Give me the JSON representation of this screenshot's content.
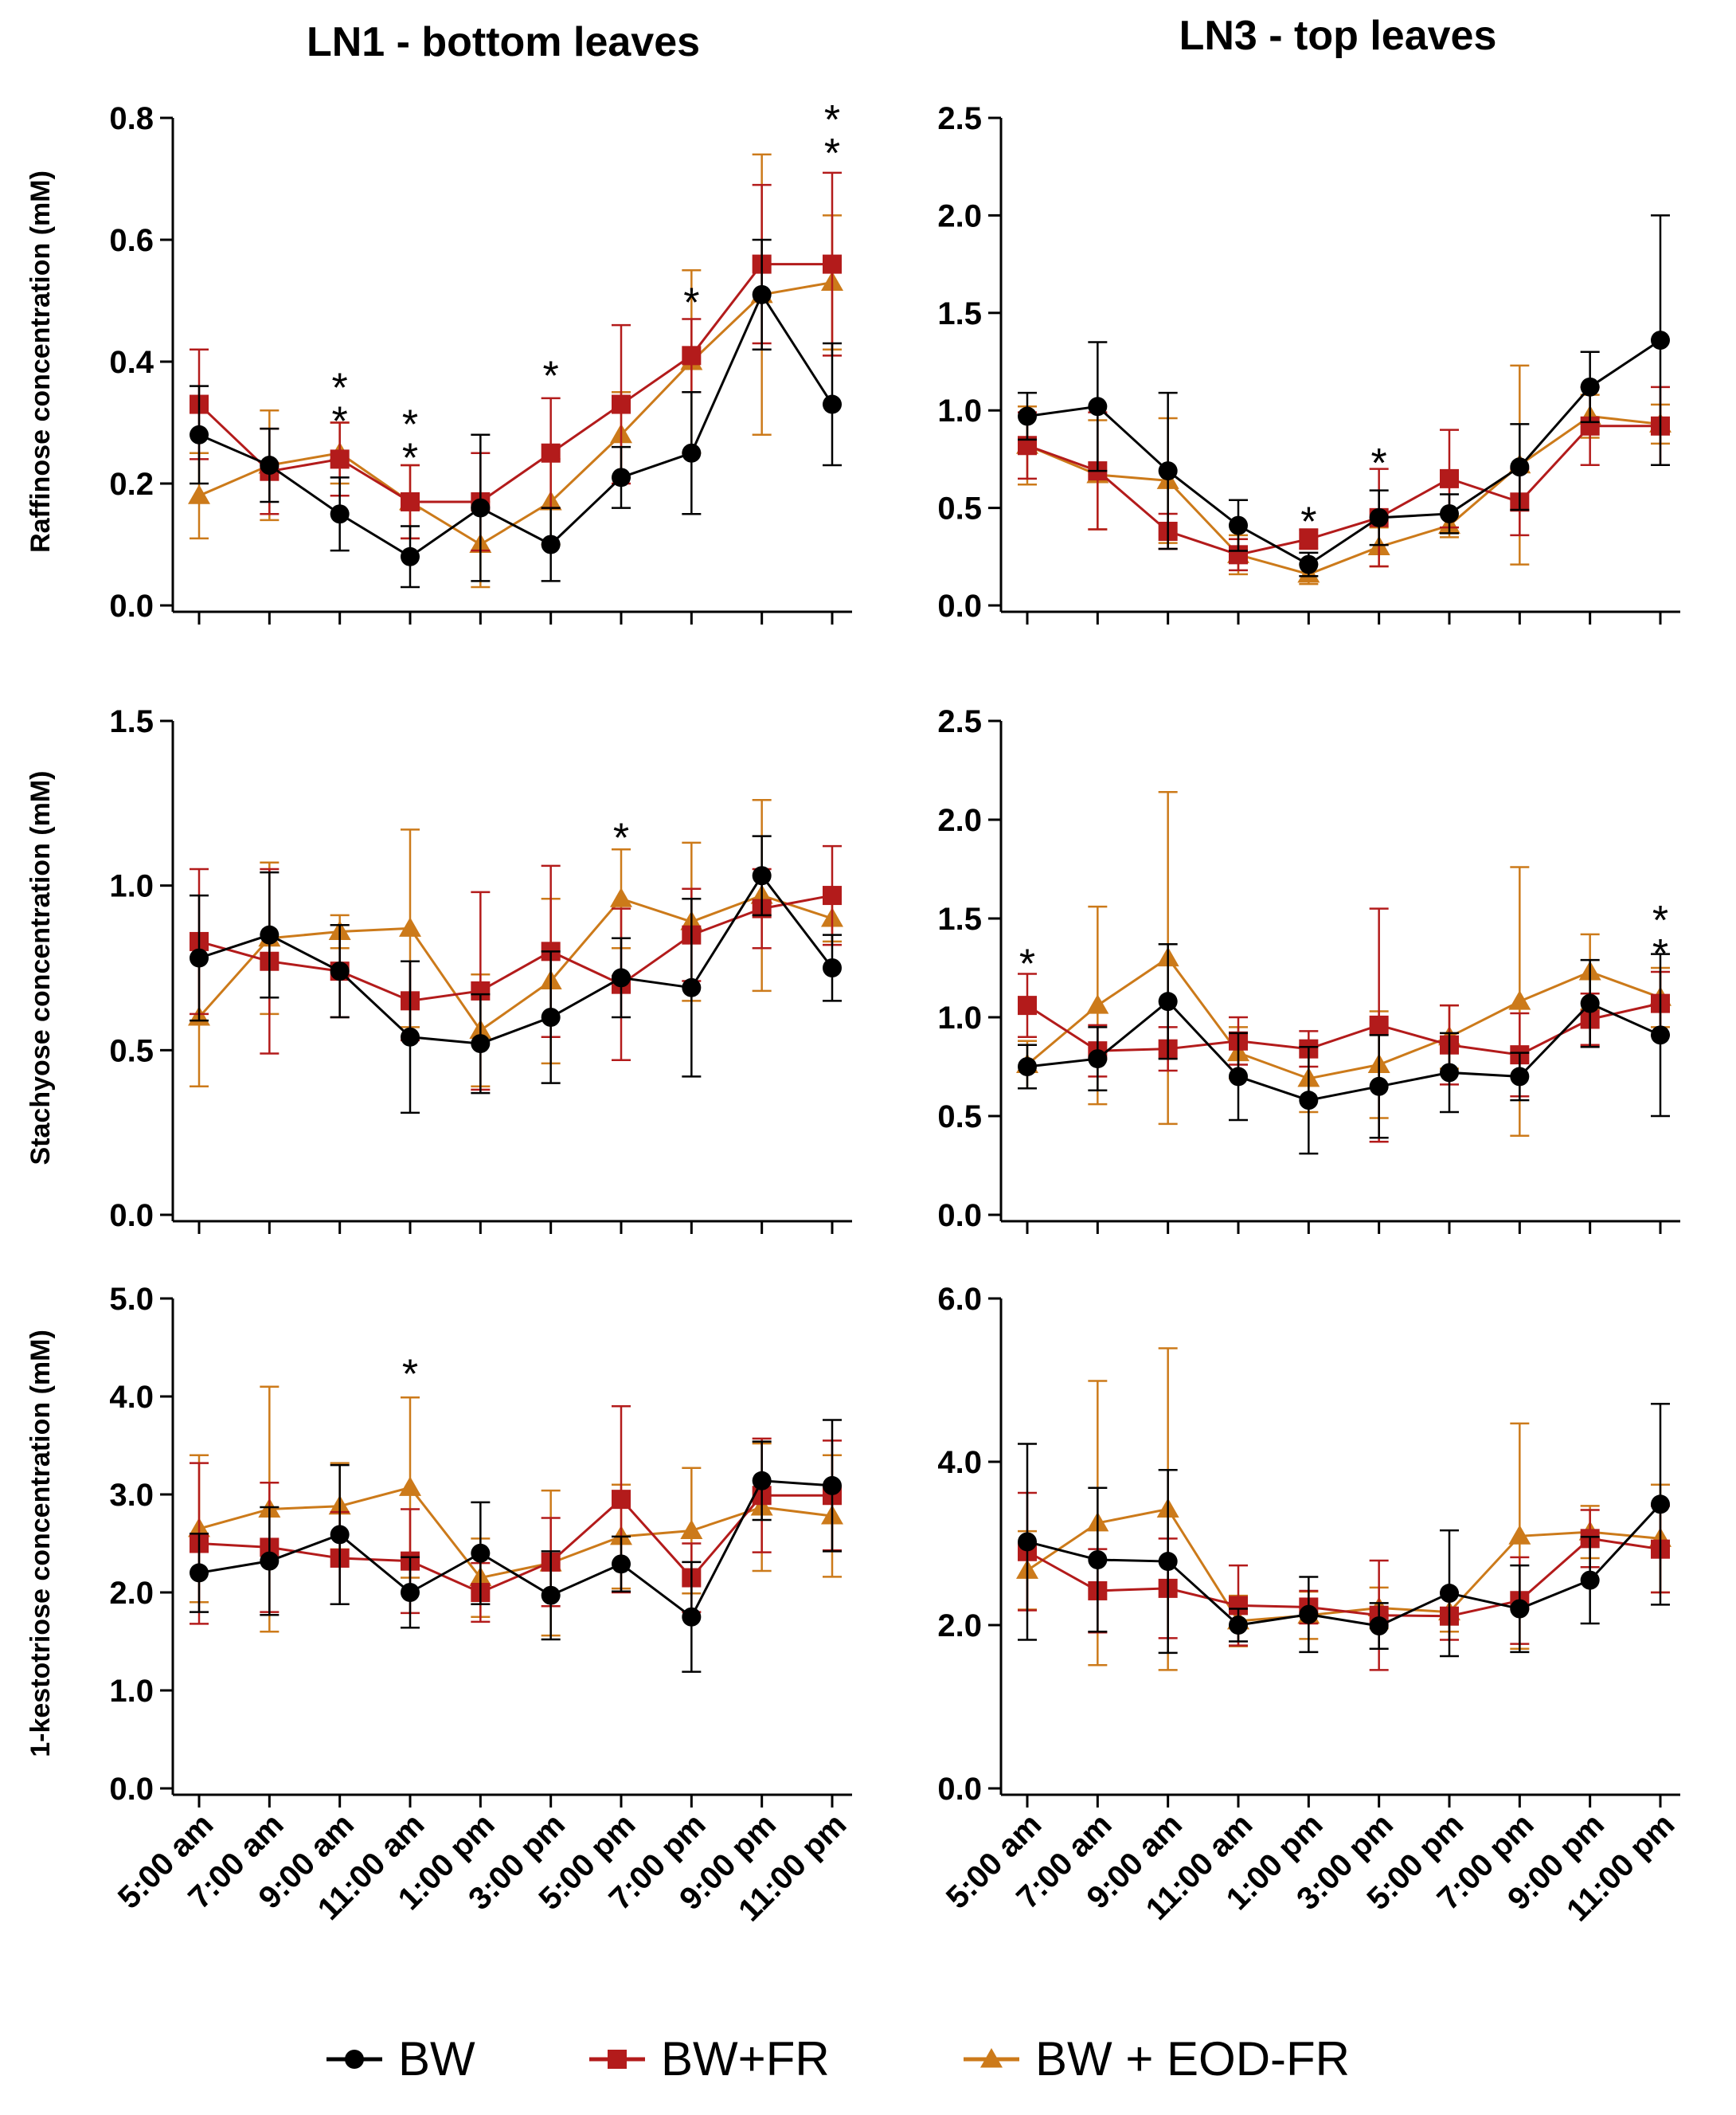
{
  "column_titles": [
    "LN1 - bottom leaves",
    "LN3 - top leaves"
  ],
  "legend": [
    {
      "label": "BW",
      "color": "#000000",
      "marker": "circle"
    },
    {
      "label": "BW+FR",
      "color": "#b31b1b",
      "marker": "square"
    },
    {
      "label": "BW + EOD-FR",
      "color": "#cc7a1a",
      "marker": "triangle"
    }
  ],
  "chart_data": [
    {
      "id": "raffinose-ln1",
      "type": "line",
      "title": "LN1 - bottom leaves",
      "ylabel": "Raffinose concentration (mM)",
      "categories": [
        "5:00 am",
        "7:00 am",
        "9:00 am",
        "11:00 am",
        "1:00 pm",
        "3:00 pm",
        "5:00 pm",
        "7:00 pm",
        "9:00 pm",
        "11:00 pm"
      ],
      "ylim": [
        0,
        0.8
      ],
      "yticks": [
        0.0,
        0.2,
        0.4,
        0.6,
        0.8
      ],
      "series": [
        {
          "name": "BW",
          "values": [
            0.28,
            0.23,
            0.15,
            0.08,
            0.16,
            0.1,
            0.21,
            0.25,
            0.51,
            0.33
          ],
          "err": [
            0.08,
            0.06,
            0.06,
            0.05,
            0.12,
            0.06,
            0.05,
            0.1,
            0.09,
            0.1
          ]
        },
        {
          "name": "BW+FR",
          "values": [
            0.33,
            0.22,
            0.24,
            0.17,
            0.17,
            0.25,
            0.33,
            0.41,
            0.56,
            0.56
          ],
          "err": [
            0.09,
            0.07,
            0.06,
            0.06,
            0.08,
            0.09,
            0.13,
            0.06,
            0.13,
            0.15
          ]
        },
        {
          "name": "BW + EOD-FR",
          "values": [
            0.18,
            0.23,
            0.25,
            0.17,
            0.1,
            0.17,
            0.28,
            0.4,
            0.51,
            0.53
          ],
          "err": [
            0.07,
            0.09,
            0.05,
            0.06,
            0.07,
            0.07,
            0.07,
            0.15,
            0.23,
            0.11
          ]
        }
      ],
      "significance": [
        {
          "category": "9:00 am",
          "y": 0.36,
          "marks": "* *"
        },
        {
          "category": "11:00 am",
          "y": 0.3,
          "marks": "* *"
        },
        {
          "category": "3:00 pm",
          "y": 0.38,
          "marks": "*"
        },
        {
          "category": "7:00 pm",
          "y": 0.5,
          "marks": "*"
        },
        {
          "category": "11:00 pm",
          "y": 0.8,
          "marks": "* *"
        }
      ]
    },
    {
      "id": "raffinose-ln3",
      "type": "line",
      "title": "LN3 - top leaves",
      "ylabel": "",
      "categories": [
        "5:00 am",
        "7:00 am",
        "9:00 am",
        "11:00 am",
        "1:00 pm",
        "3:00 pm",
        "5:00 pm",
        "7:00 pm",
        "9:00 pm",
        "11:00 pm"
      ],
      "ylim": [
        0,
        2.5
      ],
      "yticks": [
        0.0,
        0.5,
        1.0,
        1.5,
        2.0,
        2.5
      ],
      "series": [
        {
          "name": "BW",
          "values": [
            0.97,
            1.02,
            0.69,
            0.41,
            0.21,
            0.45,
            0.47,
            0.71,
            1.12,
            1.36
          ],
          "err": [
            0.12,
            0.33,
            0.4,
            0.13,
            0.06,
            0.14,
            0.1,
            0.22,
            0.18,
            0.64
          ]
        },
        {
          "name": "BW+FR",
          "values": [
            0.82,
            0.69,
            0.38,
            0.26,
            0.34,
            0.45,
            0.65,
            0.53,
            0.92,
            0.92
          ],
          "err": [
            0.17,
            0.3,
            0.09,
            0.08,
            0.05,
            0.25,
            0.25,
            0.17,
            0.2,
            0.2
          ]
        },
        {
          "name": "BW + EOD-FR",
          "values": [
            0.82,
            0.67,
            0.64,
            0.26,
            0.16,
            0.3,
            0.41,
            0.72,
            0.97,
            0.93
          ],
          "err": [
            0.2,
            0.28,
            0.32,
            0.1,
            0.05,
            0.1,
            0.06,
            0.51,
            0.11,
            0.1
          ]
        }
      ],
      "significance": [
        {
          "category": "1:00 pm",
          "y": 0.44,
          "marks": "*"
        },
        {
          "category": "3:00 pm",
          "y": 0.74,
          "marks": "*"
        }
      ]
    },
    {
      "id": "stachyose-ln1",
      "type": "line",
      "ylabel": "Stachyose concentration (mM)",
      "categories": [
        "5:00 am",
        "7:00 am",
        "9:00 am",
        "11:00 am",
        "1:00 pm",
        "3:00 pm",
        "5:00 pm",
        "7:00 pm",
        "9:00 pm",
        "11:00 pm"
      ],
      "ylim": [
        0,
        1.5
      ],
      "yticks": [
        0.0,
        0.5,
        1.0,
        1.5
      ],
      "series": [
        {
          "name": "BW",
          "values": [
            0.78,
            0.85,
            0.74,
            0.54,
            0.52,
            0.6,
            0.72,
            0.69,
            1.03,
            0.75
          ],
          "err": [
            0.19,
            0.19,
            0.14,
            0.23,
            0.15,
            0.2,
            0.12,
            0.27,
            0.12,
            0.1
          ]
        },
        {
          "name": "BW+FR",
          "values": [
            0.83,
            0.77,
            0.74,
            0.65,
            0.68,
            0.8,
            0.7,
            0.85,
            0.93,
            0.97
          ],
          "err": [
            0.22,
            0.28,
            0.14,
            0.12,
            0.3,
            0.26,
            0.23,
            0.14,
            0.12,
            0.15
          ]
        },
        {
          "name": "BW + EOD-FR",
          "values": [
            0.6,
            0.84,
            0.86,
            0.87,
            0.56,
            0.71,
            0.96,
            0.89,
            0.97,
            0.9
          ],
          "err": [
            0.21,
            0.23,
            0.05,
            0.3,
            0.17,
            0.25,
            0.15,
            0.24,
            0.29,
            0.07
          ]
        }
      ],
      "significance": [
        {
          "category": "5:00 pm",
          "y": 1.15,
          "marks": "*"
        }
      ]
    },
    {
      "id": "stachyose-ln3",
      "type": "line",
      "ylabel": "",
      "categories": [
        "5:00 am",
        "7:00 am",
        "9:00 am",
        "11:00 am",
        "1:00 pm",
        "3:00 pm",
        "5:00 pm",
        "7:00 pm",
        "9:00 pm",
        "11:00 pm"
      ],
      "ylim": [
        0,
        2.5
      ],
      "yticks": [
        0.0,
        0.5,
        1.0,
        1.5,
        2.0,
        2.5
      ],
      "series": [
        {
          "name": "BW",
          "values": [
            0.75,
            0.79,
            1.08,
            0.7,
            0.58,
            0.65,
            0.72,
            0.7,
            1.07,
            0.91
          ],
          "err": [
            0.11,
            0.16,
            0.29,
            0.22,
            0.27,
            0.26,
            0.2,
            0.12,
            0.22,
            0.41
          ]
        },
        {
          "name": "BW+FR",
          "values": [
            1.06,
            0.83,
            0.84,
            0.88,
            0.84,
            0.96,
            0.86,
            0.81,
            0.99,
            1.07
          ],
          "err": [
            0.16,
            0.13,
            0.11,
            0.12,
            0.09,
            0.59,
            0.2,
            0.21,
            0.13,
            0.16
          ]
        },
        {
          "name": "BW + EOD-FR",
          "values": [
            0.76,
            1.06,
            1.3,
            0.82,
            0.69,
            0.76,
            0.9,
            1.08,
            1.23,
            1.1
          ],
          "err": [
            0.12,
            0.5,
            0.84,
            0.13,
            0.17,
            0.27,
            0.16,
            0.68,
            0.19,
            0.15
          ]
        }
      ],
      "significance": [
        {
          "category": "5:00 am",
          "y": 1.28,
          "marks": "*"
        },
        {
          "category": "11:00 pm",
          "y": 1.5,
          "marks": "* *"
        }
      ]
    },
    {
      "id": "kestotriose-ln1",
      "type": "line",
      "ylabel": "1-kestotriose concentration (mM)",
      "categories": [
        "5:00 am",
        "7:00 am",
        "9:00 am",
        "11:00 am",
        "1:00 pm",
        "3:00 pm",
        "5:00 pm",
        "7:00 pm",
        "9:00 pm",
        "11:00 pm"
      ],
      "ylim": [
        0,
        5.0
      ],
      "yticks": [
        0.0,
        1.0,
        2.0,
        3.0,
        4.0,
        5.0
      ],
      "series": [
        {
          "name": "BW",
          "values": [
            2.2,
            2.32,
            2.59,
            2.0,
            2.4,
            1.97,
            2.29,
            1.75,
            3.14,
            3.09
          ],
          "err": [
            0.4,
            0.55,
            0.71,
            0.36,
            0.52,
            0.45,
            0.28,
            0.56,
            0.4,
            0.67
          ]
        },
        {
          "name": "BW+FR",
          "values": [
            2.5,
            2.46,
            2.35,
            2.32,
            2.0,
            2.31,
            2.95,
            2.15,
            2.99,
            2.99
          ],
          "err": [
            0.82,
            0.66,
            0.47,
            0.53,
            0.3,
            0.45,
            0.95,
            0.35,
            0.58,
            0.56
          ]
        },
        {
          "name": "BW + EOD-FR",
          "values": [
            2.65,
            2.85,
            2.88,
            3.07,
            2.15,
            2.3,
            2.57,
            2.63,
            2.87,
            2.78
          ],
          "err": [
            0.75,
            1.25,
            0.44,
            0.92,
            0.4,
            0.74,
            0.53,
            0.64,
            0.65,
            0.62
          ]
        }
      ],
      "significance": [
        {
          "category": "11:00 am",
          "y": 4.25,
          "marks": "*"
        }
      ]
    },
    {
      "id": "kestotriose-ln3",
      "type": "line",
      "ylabel": "",
      "categories": [
        "5:00 am",
        "7:00 am",
        "9:00 am",
        "11:00 am",
        "1:00 pm",
        "3:00 pm",
        "5:00 pm",
        "7:00 pm",
        "9:00 pm",
        "11:00 pm"
      ],
      "ylim": [
        0,
        6.0
      ],
      "yticks": [
        0.0,
        2.0,
        4.0,
        6.0
      ],
      "series": [
        {
          "name": "BW",
          "values": [
            3.02,
            2.8,
            2.78,
            2.0,
            2.13,
            1.99,
            2.39,
            2.2,
            2.55,
            3.48
          ],
          "err": [
            1.2,
            0.88,
            1.12,
            0.2,
            0.46,
            0.28,
            0.77,
            0.53,
            0.53,
            1.23
          ]
        },
        {
          "name": "BW+FR",
          "values": [
            2.9,
            2.42,
            2.45,
            2.24,
            2.22,
            2.12,
            2.11,
            2.3,
            3.06,
            2.93
          ],
          "err": [
            0.72,
            0.51,
            0.61,
            0.49,
            0.2,
            0.67,
            0.29,
            0.53,
            0.35,
            0.53
          ]
        },
        {
          "name": "BW + EOD-FR",
          "values": [
            2.67,
            3.25,
            3.42,
            2.05,
            2.12,
            2.21,
            2.16,
            3.09,
            3.14,
            3.06
          ],
          "err": [
            0.48,
            1.74,
            1.97,
            0.31,
            0.29,
            0.25,
            0.24,
            1.38,
            0.32,
            0.66
          ]
        }
      ],
      "significance": []
    }
  ],
  "colors": {
    "BW": "#000000",
    "BW+FR": "#b31b1b",
    "BW + EOD-FR": "#cc7a1a",
    "axis": "#000000"
  }
}
